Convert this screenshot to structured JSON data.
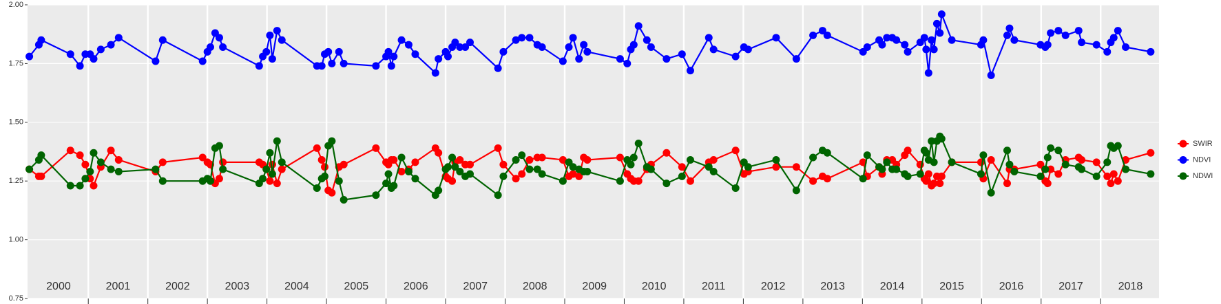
{
  "chart_data": {
    "type": "line",
    "x": [
      2000.01,
      2000.17,
      2000.21,
      2000.7,
      2000.86,
      2000.95,
      2001.03,
      2001.09,
      2001.21,
      2001.38,
      2001.51,
      2002.13,
      2002.25,
      2002.92,
      2003.0,
      2003.05,
      2003.13,
      2003.2,
      2003.26,
      2003.87,
      2003.93,
      2003.99,
      2004.05,
      2004.09,
      2004.17,
      2004.25,
      2004.84,
      2004.92,
      2004.97,
      2005.03,
      2005.09,
      2005.21,
      2005.29,
      2005.83,
      2006.0,
      2006.04,
      2006.09,
      2006.13,
      2006.26,
      2006.38,
      2006.49,
      2006.83,
      2006.88,
      2007.0,
      2007.04,
      2007.11,
      2007.16,
      2007.24,
      2007.33,
      2007.41,
      2007.88,
      2007.97,
      2008.18,
      2008.28,
      2008.41,
      2008.54,
      2008.62,
      2008.97,
      2009.07,
      2009.14,
      2009.24,
      2009.32,
      2009.38,
      2009.93,
      2010.05,
      2010.11,
      2010.16,
      2010.24,
      2010.38,
      2010.45,
      2010.71,
      2010.97,
      2011.11,
      2011.42,
      2011.5,
      2011.87,
      2012.01,
      2012.08,
      2012.55,
      2012.89,
      2013.17,
      2013.33,
      2013.41,
      2014.01,
      2014.08,
      2014.28,
      2014.33,
      2014.41,
      2014.5,
      2014.57,
      2014.71,
      2014.76,
      2014.97,
      2015.04,
      2015.07,
      2015.11,
      2015.16,
      2015.2,
      2015.25,
      2015.3,
      2015.33,
      2015.5,
      2015.99,
      2016.03,
      2016.16,
      2016.43,
      2016.47,
      2016.55,
      2016.99,
      2017.07,
      2017.11,
      2017.16,
      2017.29,
      2017.41,
      2017.63,
      2017.68,
      2017.93,
      2018.11,
      2018.17,
      2018.22,
      2018.29,
      2018.42,
      2018.84
    ],
    "series": [
      {
        "name": "SWIR",
        "color": "#ff0000",
        "values": [
          1.3,
          1.27,
          1.27,
          1.38,
          1.36,
          1.32,
          1.26,
          1.23,
          1.31,
          1.38,
          1.34,
          1.29,
          1.33,
          1.35,
          1.33,
          1.32,
          1.24,
          1.26,
          1.33,
          1.33,
          1.32,
          1.3,
          1.25,
          1.32,
          1.24,
          1.3,
          1.39,
          1.34,
          1.31,
          1.21,
          1.2,
          1.31,
          1.32,
          1.39,
          1.33,
          1.32,
          1.34,
          1.34,
          1.29,
          1.3,
          1.33,
          1.39,
          1.37,
          1.27,
          1.26,
          1.25,
          1.33,
          1.34,
          1.32,
          1.32,
          1.39,
          1.32,
          1.26,
          1.28,
          1.34,
          1.35,
          1.35,
          1.34,
          1.27,
          1.28,
          1.27,
          1.35,
          1.34,
          1.35,
          1.28,
          1.26,
          1.25,
          1.25,
          1.3,
          1.32,
          1.37,
          1.31,
          1.25,
          1.33,
          1.34,
          1.38,
          1.28,
          1.29,
          1.31,
          1.31,
          1.25,
          1.27,
          1.26,
          1.33,
          1.27,
          1.31,
          1.28,
          1.34,
          1.34,
          1.32,
          1.36,
          1.38,
          1.32,
          1.26,
          1.25,
          1.28,
          1.23,
          1.24,
          1.27,
          1.24,
          1.27,
          1.33,
          1.33,
          1.26,
          1.34,
          1.24,
          1.3,
          1.3,
          1.32,
          1.25,
          1.24,
          1.3,
          1.28,
          1.34,
          1.35,
          1.34,
          1.33,
          1.27,
          1.24,
          1.28,
          1.25,
          1.34,
          1.37
        ]
      },
      {
        "name": "NDVI",
        "color": "#0000ff",
        "values": [
          1.78,
          1.83,
          1.85,
          1.79,
          1.74,
          1.79,
          1.79,
          1.77,
          1.81,
          1.83,
          1.86,
          1.76,
          1.85,
          1.76,
          1.8,
          1.82,
          1.88,
          1.86,
          1.82,
          1.74,
          1.78,
          1.8,
          1.87,
          1.77,
          1.89,
          1.85,
          1.74,
          1.74,
          1.79,
          1.8,
          1.75,
          1.8,
          1.75,
          1.74,
          1.78,
          1.8,
          1.74,
          1.78,
          1.85,
          1.83,
          1.79,
          1.71,
          1.77,
          1.8,
          1.78,
          1.82,
          1.84,
          1.82,
          1.82,
          1.84,
          1.73,
          1.8,
          1.85,
          1.86,
          1.86,
          1.83,
          1.82,
          1.76,
          1.82,
          1.86,
          1.77,
          1.83,
          1.8,
          1.77,
          1.75,
          1.81,
          1.83,
          1.91,
          1.85,
          1.82,
          1.77,
          1.79,
          1.72,
          1.86,
          1.81,
          1.78,
          1.82,
          1.81,
          1.86,
          1.77,
          1.87,
          1.89,
          1.87,
          1.8,
          1.82,
          1.85,
          1.83,
          1.86,
          1.86,
          1.85,
          1.83,
          1.8,
          1.84,
          1.86,
          1.81,
          1.71,
          1.85,
          1.81,
          1.92,
          1.88,
          1.96,
          1.85,
          1.83,
          1.85,
          1.7,
          1.87,
          1.9,
          1.85,
          1.83,
          1.82,
          1.83,
          1.88,
          1.89,
          1.87,
          1.89,
          1.84,
          1.83,
          1.8,
          1.84,
          1.86,
          1.89,
          1.82,
          1.8
        ]
      },
      {
        "name": "NDWI",
        "color": "#006400",
        "values": [
          1.3,
          1.34,
          1.36,
          1.23,
          1.23,
          1.26,
          1.29,
          1.37,
          1.33,
          1.3,
          1.29,
          1.3,
          1.25,
          1.25,
          1.26,
          1.25,
          1.39,
          1.4,
          1.3,
          1.24,
          1.26,
          1.3,
          1.37,
          1.28,
          1.42,
          1.33,
          1.22,
          1.26,
          1.27,
          1.4,
          1.42,
          1.25,
          1.17,
          1.19,
          1.24,
          1.28,
          1.22,
          1.23,
          1.35,
          1.29,
          1.26,
          1.19,
          1.21,
          1.3,
          1.31,
          1.35,
          1.31,
          1.29,
          1.27,
          1.28,
          1.19,
          1.27,
          1.34,
          1.36,
          1.3,
          1.3,
          1.28,
          1.25,
          1.33,
          1.31,
          1.3,
          1.29,
          1.29,
          1.25,
          1.34,
          1.32,
          1.35,
          1.41,
          1.31,
          1.3,
          1.24,
          1.27,
          1.34,
          1.31,
          1.29,
          1.22,
          1.33,
          1.31,
          1.34,
          1.21,
          1.35,
          1.38,
          1.37,
          1.26,
          1.36,
          1.31,
          1.3,
          1.33,
          1.3,
          1.3,
          1.28,
          1.27,
          1.28,
          1.38,
          1.37,
          1.34,
          1.42,
          1.33,
          1.42,
          1.44,
          1.43,
          1.33,
          1.28,
          1.36,
          1.2,
          1.38,
          1.32,
          1.29,
          1.27,
          1.3,
          1.35,
          1.39,
          1.38,
          1.32,
          1.31,
          1.3,
          1.27,
          1.33,
          1.4,
          1.39,
          1.4,
          1.3,
          1.28
        ]
      }
    ],
    "xlim": [
      1999.98,
      2018.98
    ],
    "xticks": [
      {
        "value": 2000.5,
        "label": "2000"
      },
      {
        "value": 2001.5,
        "label": "2001"
      },
      {
        "value": 2002.5,
        "label": "2002"
      },
      {
        "value": 2003.5,
        "label": "2003"
      },
      {
        "value": 2004.5,
        "label": "2004"
      },
      {
        "value": 2005.5,
        "label": "2005"
      },
      {
        "value": 2006.5,
        "label": "2006"
      },
      {
        "value": 2007.5,
        "label": "2007"
      },
      {
        "value": 2008.5,
        "label": "2008"
      },
      {
        "value": 2009.5,
        "label": "2009"
      },
      {
        "value": 2010.5,
        "label": "2010"
      },
      {
        "value": 2011.5,
        "label": "2011"
      },
      {
        "value": 2012.5,
        "label": "2012"
      },
      {
        "value": 2013.5,
        "label": "2013"
      },
      {
        "value": 2014.5,
        "label": "2014"
      },
      {
        "value": 2015.5,
        "label": "2015"
      },
      {
        "value": 2016.5,
        "label": "2016"
      },
      {
        "value": 2017.5,
        "label": "2017"
      },
      {
        "value": 2018.5,
        "label": "2018"
      }
    ],
    "xbreaks": [
      2001,
      2002,
      2003,
      2004,
      2005,
      2006,
      2007,
      2008,
      2009,
      2010,
      2011,
      2012,
      2013,
      2014,
      2015,
      2016,
      2017,
      2018
    ],
    "ylim": [
      0.75,
      2.0
    ],
    "yticks": [
      {
        "value": 0.75,
        "label": "0.75"
      },
      {
        "value": 1.0,
        "label": "1.00"
      },
      {
        "value": 1.25,
        "label": "1.25"
      },
      {
        "value": 1.5,
        "label": "1.50"
      },
      {
        "value": 1.75,
        "label": "1.75"
      },
      {
        "value": 2.0,
        "label": "2.00"
      }
    ],
    "grid": true,
    "legend": "right"
  }
}
